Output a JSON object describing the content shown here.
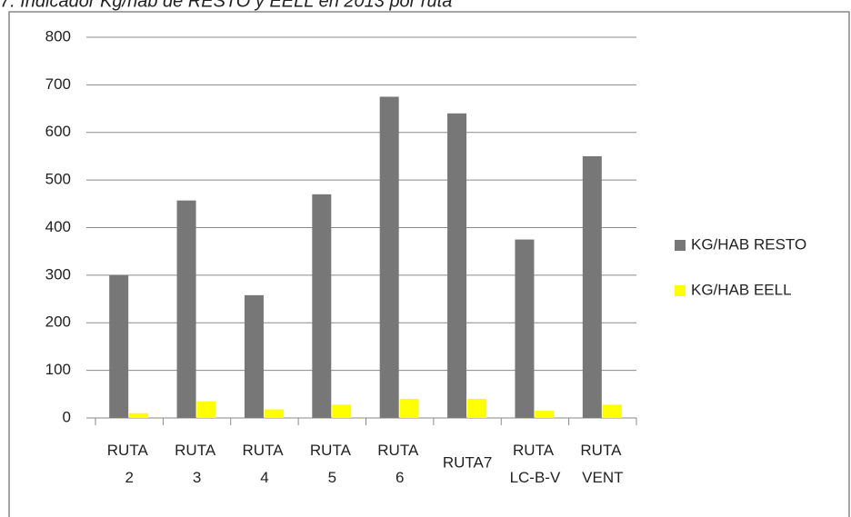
{
  "chart_data": {
    "type": "bar",
    "title": "7.   Indicador Kg/hab de RESTO y EELL en 2013 por ruta",
    "categories": [
      "RUTA 2",
      "RUTA 3",
      "RUTA 4",
      "RUTA 5",
      "RUTA 6",
      "RUTA7",
      "RUTA LC-B-V",
      "RUTA VENT"
    ],
    "series": [
      {
        "name": "KG/HAB RESTO",
        "color": "#777777",
        "values": [
          300,
          457,
          258,
          470,
          675,
          640,
          375,
          550
        ]
      },
      {
        "name": "KG/HAB EELL",
        "color": "#ffff00",
        "values": [
          10,
          35,
          18,
          28,
          40,
          40,
          15,
          28
        ]
      }
    ],
    "ylim": [
      0,
      800
    ],
    "yticks": [
      0,
      100,
      200,
      300,
      400,
      500,
      600,
      700,
      800
    ],
    "grid": true,
    "legend": "right"
  }
}
